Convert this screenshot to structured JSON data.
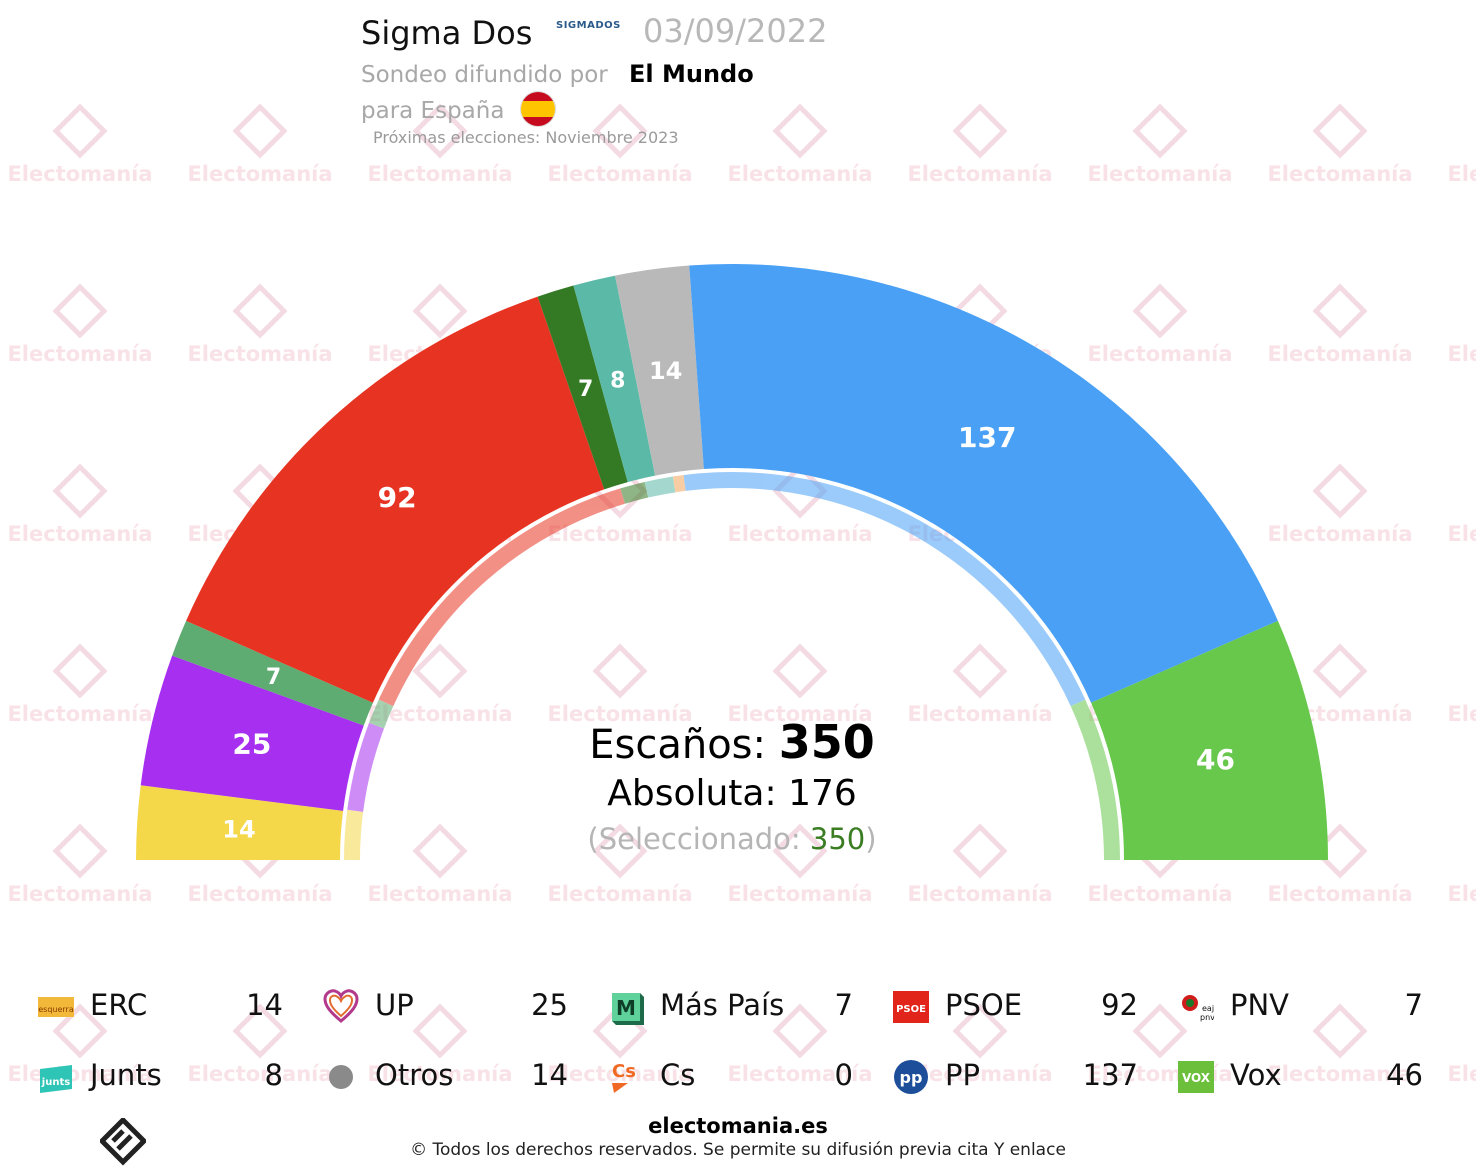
{
  "header": {
    "pollster": "Sigma Dos",
    "pollster_logo": "SIGMADOS",
    "date": "03/09/2022",
    "line2_prefix": "Sondeo difundido por",
    "media": "El Mundo",
    "line3": "para España",
    "next_elections": "Próximas elecciones: Noviembre 2023"
  },
  "watermark": "Electomanía",
  "center": {
    "seats_label": "Escaños:",
    "seats_total": "350",
    "majority_label": "Absoluta:",
    "majority_value": "176",
    "selected_open": "(Seleccionado:",
    "selected_value": "350",
    "selected_close": ")"
  },
  "chart_data": {
    "type": "hemicycle",
    "total_seats": 350,
    "majority": 176,
    "selected": 350,
    "series": [
      {
        "name": "ERC",
        "seats": 14,
        "color": "#f5d84a"
      },
      {
        "name": "UP",
        "seats": 25,
        "color": "#a62ff0"
      },
      {
        "name": "Más País",
        "seats": 7,
        "color": "#5fac72"
      },
      {
        "name": "PSOE",
        "seats": 92,
        "color": "#e73422"
      },
      {
        "name": "PNV",
        "seats": 7,
        "color": "#347a24"
      },
      {
        "name": "Junts",
        "seats": 8,
        "color": "#5bbaa7"
      },
      {
        "name": "Otros",
        "seats": 14,
        "color": "#b9b9b9"
      },
      {
        "name": "Cs",
        "seats": 0,
        "color": "#f5a55a"
      },
      {
        "name": "PP",
        "seats": 137,
        "color": "#49a0f5"
      },
      {
        "name": "Vox",
        "seats": 46,
        "color": "#67c84c"
      }
    ],
    "inner_ring_order": [
      "ERC",
      "UP",
      "Más País",
      "PSOE",
      "PNV",
      "Junts",
      "Cs",
      "PP",
      "Vox"
    ]
  },
  "legend": [
    {
      "name": "ERC",
      "value": "14",
      "icon": "erc-logo-icon",
      "icon_text": "esquerra"
    },
    {
      "name": "UP",
      "value": "25",
      "icon": "up-heart-icon",
      "icon_text": ""
    },
    {
      "name": "Más País",
      "value": "7",
      "icon": "mas-pais-logo-icon",
      "icon_text": "M"
    },
    {
      "name": "PSOE",
      "value": "92",
      "icon": "psoe-logo-icon",
      "icon_text": "PSOE"
    },
    {
      "name": "PNV",
      "value": "7",
      "icon": "pnv-logo-icon",
      "icon_text": "eaj pnv"
    },
    {
      "name": "Junts",
      "value": "8",
      "icon": "junts-logo-icon",
      "icon_text": "junts"
    },
    {
      "name": "Otros",
      "value": "14",
      "icon": "otros-dot-icon",
      "icon_text": ""
    },
    {
      "name": "Cs",
      "value": "0",
      "icon": "cs-logo-icon",
      "icon_text": "Cs"
    },
    {
      "name": "PP",
      "value": "137",
      "icon": "pp-logo-icon",
      "icon_text": "pp"
    },
    {
      "name": "Vox",
      "value": "46",
      "icon": "vox-logo-icon",
      "icon_text": "VOX"
    }
  ],
  "footer": {
    "site": "electomania.es",
    "copyright": "© Todos los derechos reservados. Se permite su difusión previa cita Y enlace"
  }
}
